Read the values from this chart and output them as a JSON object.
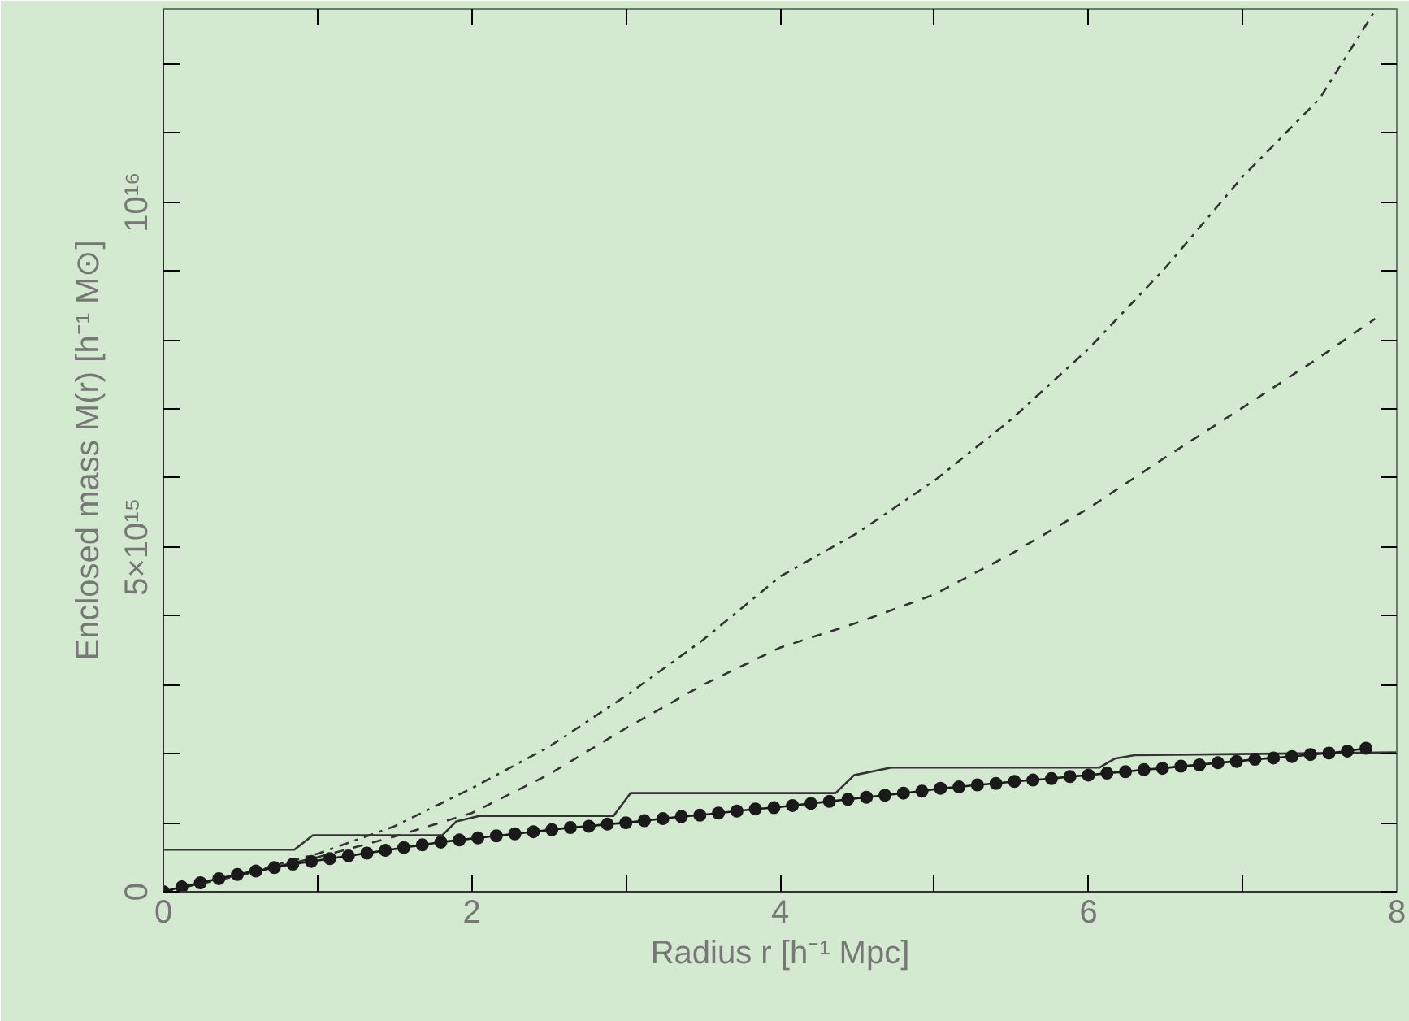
{
  "chart_data": {
    "type": "line",
    "xlabel": "Radius r [h⁻¹ Mpc]",
    "ylabel": "Enclosed mass M(r) [h⁻¹ M⊙]",
    "xlim": [
      0,
      8
    ],
    "ylim": [
      0,
      1.28e+16
    ],
    "xticks": [
      0,
      {
        "value": 1,
        "label": null
      },
      2,
      {
        "value": 3,
        "label": null
      },
      4,
      {
        "value": 5,
        "label": null
      },
      6,
      {
        "value": 7,
        "label": null
      },
      8
    ],
    "yticks": [
      0,
      {
        "value": 1000000000000000.0,
        "label": null
      },
      {
        "value": 2000000000000000.0,
        "label": null
      },
      {
        "value": 3000000000000000.0,
        "label": null
      },
      {
        "value": 4000000000000000.0,
        "label": null
      },
      {
        "value": 5000000000000000.0,
        "label": "5×10¹⁵"
      },
      {
        "value": 6000000000000000.0,
        "label": null
      },
      {
        "value": 7000000000000000.0,
        "label": null
      },
      {
        "value": 8000000000000000.0,
        "label": null
      },
      {
        "value": 9000000000000000.0,
        "label": null
      },
      {
        "value": 1e+16,
        "label": "10¹⁶"
      },
      {
        "value": 1.1e+16,
        "label": null
      },
      {
        "value": 1.2e+16,
        "label": null
      }
    ],
    "grid": false,
    "series": [
      {
        "color": "#333333",
        "line_style": "dashdot",
        "x": [
          0,
          0.5,
          1,
          1.5,
          2,
          2.5,
          3,
          3.5,
          4,
          4.5,
          5,
          5.5,
          6,
          6.5,
          7,
          7.5,
          7.86
        ],
        "values": [
          0,
          250000000000000.0,
          550000000000000.0,
          950000000000000.0,
          1500000000000000.0,
          2100000000000000.0,
          2840000000000000.0,
          3650000000000000.0,
          4570000000000000.0,
          5200000000000000.0,
          5960000000000000.0,
          6850000000000000.0,
          7870000000000000.0,
          9050000000000000.0,
          1.037e+16,
          1.15e+16,
          1.278e+16
        ]
      },
      {
        "color": "#333333",
        "line_style": "dashed",
        "x": [
          0,
          0.5,
          1,
          1.5,
          2,
          2.5,
          3,
          3.5,
          4,
          4.5,
          5,
          5.5,
          6,
          6.5,
          7,
          7.5,
          7.86
        ],
        "values": [
          0,
          240000000000000.0,
          500000000000000.0,
          800000000000000.0,
          1140000000000000.0,
          1700000000000000.0,
          2370000000000000.0,
          3000000000000000.0,
          3540000000000000.0,
          3900000000000000.0,
          4310000000000000.0,
          4900000000000000.0,
          5560000000000000.0,
          6300000000000000.0,
          7020000000000000.0,
          7750000000000000.0,
          8310000000000000.0
        ]
      },
      {
        "color": "#333333",
        "line_style": "solid",
        "x": [
          0,
          0.85,
          0.97,
          1.81,
          1.9,
          2.05,
          2.92,
          3.03,
          4.36,
          4.48,
          4.72,
          6.07,
          6.17,
          6.3,
          8
        ],
        "values": [
          610000000000000.0,
          610000000000000.0,
          820000000000000.0,
          820000000000000.0,
          1020000000000000.0,
          1100000000000000.0,
          1100000000000000.0,
          1430000000000000.0,
          1430000000000000.0,
          1690000000000000.0,
          1800000000000000.0,
          1800000000000000.0,
          1930000000000000.0,
          1980000000000000.0,
          2020000000000000.0
        ]
      },
      {
        "color": "#1a1a1a",
        "line_style": "solid",
        "marker": "circle",
        "x": [
          0,
          0.12,
          0.24,
          0.36,
          0.48,
          0.6,
          0.72,
          0.84,
          0.96,
          1.08,
          1.2,
          1.32,
          1.44,
          1.56,
          1.68,
          1.8,
          1.92,
          2.04,
          2.16,
          2.28,
          2.4,
          2.52,
          2.64,
          2.76,
          2.88,
          3.0,
          3.12,
          3.24,
          3.36,
          3.48,
          3.6,
          3.72,
          3.84,
          3.96,
          4.08,
          4.2,
          4.32,
          4.44,
          4.56,
          4.68,
          4.8,
          4.92,
          5.04,
          5.16,
          5.28,
          5.4,
          5.52,
          5.64,
          5.76,
          5.88,
          6.0,
          6.12,
          6.24,
          6.36,
          6.48,
          6.6,
          6.72,
          6.84,
          6.96,
          7.08,
          7.2,
          7.32,
          7.44,
          7.56,
          7.68,
          7.8
        ],
        "values": [
          0,
          70000000000000.0,
          130000000000000.0,
          190000000000000.0,
          250000000000000.0,
          300000000000000.0,
          350000000000000.0,
          400000000000000.0,
          440000000000000.0,
          480000000000000.0,
          520000000000000.0,
          560000000000000.0,
          600000000000000.0,
          640000000000000.0,
          680000000000000.0,
          720000000000000.0,
          750000000000000.0,
          780000000000000.0,
          810000000000000.0,
          840000000000000.0,
          870000000000000.0,
          900000000000000.0,
          930000000000000.0,
          950000000000000.0,
          980000000000000.0,
          1000000000000000.0,
          1030000000000000.0,
          1060000000000000.0,
          1090000000000000.0,
          1110000000000000.0,
          1140000000000000.0,
          1170000000000000.0,
          1200000000000000.0,
          1220000000000000.0,
          1250000000000000.0,
          1280000000000000.0,
          1310000000000000.0,
          1340000000000000.0,
          1370000000000000.0,
          1400000000000000.0,
          1430000000000000.0,
          1460000000000000.0,
          1500000000000000.0,
          1520000000000000.0,
          1550000000000000.0,
          1570000000000000.0,
          1600000000000000.0,
          1620000000000000.0,
          1640000000000000.0,
          1670000000000000.0,
          1690000000000000.0,
          1720000000000000.0,
          1740000000000000.0,
          1770000000000000.0,
          1790000000000000.0,
          1820000000000000.0,
          1840000000000000.0,
          1870000000000000.0,
          1890000000000000.0,
          1920000000000000.0,
          1940000000000000.0,
          1960000000000000.0,
          1990000000000000.0,
          2010000000000000.0,
          2040000000000000.0,
          2080000000000000.0
        ]
      }
    ]
  }
}
